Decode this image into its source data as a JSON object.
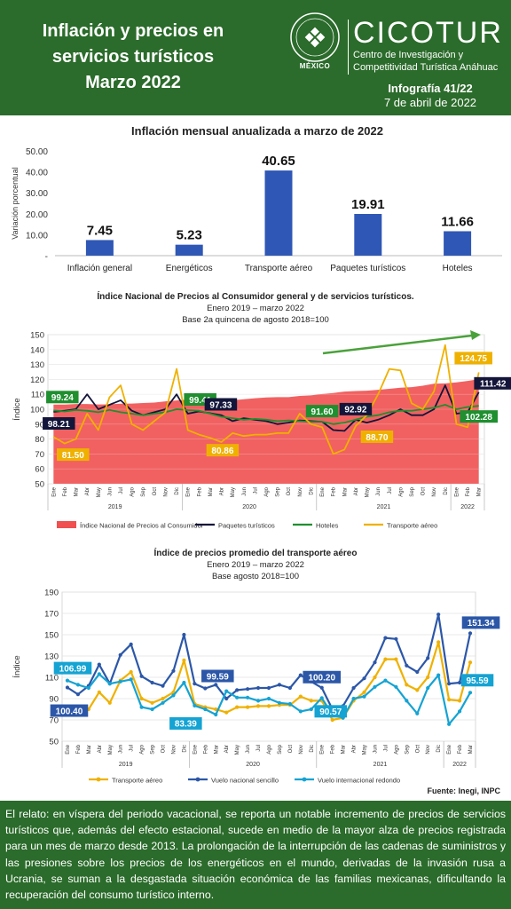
{
  "header": {
    "title_lines": [
      "Inflación y precios en",
      "servicios turísticos",
      "Marzo 2022"
    ],
    "logo_name": "CICOTUR",
    "org_line1": "Centro de Investigación y",
    "org_line2": "Competitividad Turística Anáhuac",
    "seal_text": "MÉXICO",
    "infographic": "Infografía 41/22",
    "date": "7 de abril de 2022",
    "accent_color": "#2b6b2b"
  },
  "chart_data": [
    {
      "type": "bar",
      "title": "Inflación mensual anualizada a marzo de 2022",
      "ylabel": "Variación porcentual",
      "categories": [
        "Inflación general",
        "Energéticos",
        "Transporte aéreo",
        "Paquetes turísticos",
        "Hoteles"
      ],
      "values": [
        7.45,
        5.23,
        40.65,
        19.91,
        11.66
      ],
      "value_labels": [
        "7.45",
        "5.23",
        "40.65",
        "19.91",
        "11.66"
      ],
      "yticks": [
        "-",
        "10.00",
        "20.00",
        "30.00",
        "40.00",
        "50.00"
      ],
      "ylim": [
        0,
        50
      ],
      "color": "#2f57b5"
    },
    {
      "type": "line",
      "title": "Índice Nacional de Precios al Consumidor general y de servicios turísticos.",
      "subtitle1": "Enero 2019 – marzo 2022",
      "subtitle2": "Base 2a quincena de agosto 2018=100",
      "ylabel": "Índice",
      "ylim": [
        50,
        150
      ],
      "yticks": [
        50,
        60,
        70,
        80,
        90,
        100,
        110,
        120,
        130,
        140,
        150
      ],
      "month_labels": [
        "Ene",
        "Feb",
        "Mar",
        "Abr",
        "May",
        "Jun",
        "Jul",
        "Ago",
        "Sep",
        "Oct",
        "Nov",
        "Dic"
      ],
      "years": [
        "2019",
        "2020",
        "2021",
        "2022"
      ],
      "series": [
        {
          "name": "Índice Nacional de Precios al Consumidor",
          "kind": "area",
          "color": "#f05050",
          "values": [
            103.1,
            103.1,
            103.5,
            103.5,
            103.2,
            103.3,
            103.7,
            103.8,
            104.2,
            104.5,
            105.3,
            105.9,
            106.4,
            106.9,
            106.8,
            105.8,
            106.0,
            106.7,
            107.4,
            107.9,
            108.1,
            108.1,
            108.9,
            109.3,
            110.2,
            110.9,
            111.8,
            112.2,
            112.4,
            113.0,
            113.7,
            114.4,
            114.8,
            115.8,
            117.1,
            117.3,
            118.0,
            118.98,
            120.2
          ]
        },
        {
          "name": "Paquetes turísticos",
          "kind": "line",
          "color": "#13153a",
          "values": [
            98.21,
            99.0,
            100.0,
            110.0,
            100.0,
            103.0,
            106.0,
            99.0,
            96.0,
            98.0,
            100.0,
            110.0,
            97.0,
            98.5,
            97.33,
            96.0,
            92.0,
            94.0,
            93.0,
            92.0,
            90.0,
            91.0,
            92.5,
            92.0,
            91.6,
            86.0,
            85.5,
            92.92,
            91.0,
            93.0,
            96.0,
            100.0,
            96.0,
            96.0,
            100.0,
            116.0,
            97.0,
            98.0,
            111.42
          ]
        },
        {
          "name": "Hoteles",
          "kind": "line",
          "color": "#1f8f2f",
          "values": [
            99.24,
            98.5,
            99.5,
            99.0,
            98.0,
            99.5,
            98.0,
            97.0,
            96.0,
            97.0,
            98.0,
            100.0,
            99.41,
            99.0,
            97.0,
            95.0,
            94.0,
            93.0,
            93.5,
            93.0,
            92.0,
            92.5,
            92.0,
            91.6,
            91.6,
            90.0,
            91.0,
            93.0,
            95.0,
            96.0,
            98.0,
            99.0,
            99.0,
            100.0,
            101.0,
            103.0,
            100.0,
            101.5,
            102.28
          ]
        },
        {
          "name": "Transporte aéreo",
          "kind": "line",
          "color": "#efb100",
          "values": [
            81.5,
            77.0,
            80.0,
            97.0,
            86.0,
            108.0,
            116.0,
            90.0,
            86.0,
            92.0,
            98.0,
            127.0,
            86.0,
            83.0,
            80.86,
            78.0,
            84.0,
            82.0,
            83.0,
            83.0,
            84.0,
            84.0,
            97.0,
            90.0,
            88.0,
            70.0,
            73.0,
            88.7,
            96.0,
            110.0,
            127.0,
            126.0,
            104.0,
            100.0,
            112.0,
            143.0,
            90.0,
            88.0,
            124.75
          ]
        }
      ],
      "data_labels": [
        {
          "text": "99.24",
          "series": 2,
          "index": 0
        },
        {
          "text": "98.21",
          "series": 1,
          "index": 0
        },
        {
          "text": "81.50",
          "series": 3,
          "index": 0
        },
        {
          "text": "99.41",
          "series": 2,
          "index": 12
        },
        {
          "text": "97.33",
          "series": 1,
          "index": 14
        },
        {
          "text": "80.86",
          "series": 3,
          "index": 14
        },
        {
          "text": "91.60",
          "series": 2,
          "index": 24
        },
        {
          "text": "92.92",
          "series": 1,
          "index": 27
        },
        {
          "text": "88.70",
          "series": 3,
          "index": 27
        },
        {
          "text": "124.75",
          "series": 3,
          "index": 38
        },
        {
          "text": "111.42",
          "series": 1,
          "index": 38
        },
        {
          "text": "102.28",
          "series": 2,
          "index": 38
        }
      ],
      "trend_arrow": true,
      "legend": "bottom"
    },
    {
      "type": "line",
      "title": "Índice de precios promedio del transporte aéreo",
      "subtitle1": "Enero 2019 – marzo 2022",
      "subtitle2": "Base agosto 2018=100",
      "ylabel": "Índice",
      "ylim": [
        50,
        190
      ],
      "yticks": [
        50,
        70,
        90,
        110,
        130,
        150,
        170,
        190
      ],
      "month_labels": [
        "Ene",
        "Feb",
        "Mar",
        "Abr",
        "May",
        "Jun",
        "Jul",
        "Ago",
        "Sep",
        "Oct",
        "Nov",
        "Dic"
      ],
      "years": [
        "2019",
        "2020",
        "2021",
        "2022"
      ],
      "series": [
        {
          "name": "Transporte aéreo",
          "color": "#efb100",
          "values": [
            78.0,
            76.0,
            80.0,
            96.0,
            86.0,
            107.0,
            115.0,
            90.0,
            86.0,
            90.0,
            96.0,
            126.0,
            85.0,
            82.0,
            80.0,
            77.0,
            82.0,
            82.0,
            83.0,
            83.0,
            84.0,
            84.0,
            92.0,
            88.0,
            88.0,
            70.0,
            72.0,
            88.0,
            96.0,
            110.0,
            127.0,
            127.0,
            103.0,
            98.0,
            110.0,
            143.0,
            89.0,
            88.0,
            124.0
          ]
        },
        {
          "name": "Vuelo nacional sencillo",
          "color": "#2c57a8",
          "values": [
            100.4,
            94.0,
            102.0,
            122.0,
            104.0,
            131.0,
            141.0,
            111.0,
            105.0,
            102.0,
            116.0,
            150.0,
            104.0,
            99.59,
            103.0,
            90.0,
            98.0,
            99.0,
            100.0,
            100.0,
            103.0,
            100.0,
            112.0,
            106.0,
            100.2,
            80.0,
            83.0,
            100.0,
            109.0,
            124.0,
            147.0,
            146.0,
            121.0,
            115.0,
            128.0,
            169.0,
            104.0,
            105.0,
            151.34
          ]
        },
        {
          "name": "Vuelo internacional redondo",
          "color": "#15a3d3",
          "values": [
            106.99,
            103.0,
            100.0,
            113.0,
            104.0,
            106.0,
            108.0,
            82.0,
            80.0,
            86.0,
            93.0,
            105.0,
            83.39,
            80.0,
            75.0,
            97.0,
            91.0,
            91.0,
            88.0,
            90.0,
            86.0,
            85.0,
            78.0,
            80.0,
            90.57,
            75.0,
            72.0,
            90.0,
            92.0,
            101.0,
            107.0,
            101.0,
            88.0,
            76.0,
            100.0,
            112.0,
            66.0,
            78.0,
            95.59
          ]
        }
      ],
      "data_labels": [
        {
          "text": "106.99",
          "series": 2,
          "index": 0
        },
        {
          "text": "100.40",
          "series": 1,
          "index": 0
        },
        {
          "text": "99.59",
          "series": 1,
          "index": 13
        },
        {
          "text": "83.39",
          "series": 2,
          "index": 12
        },
        {
          "text": "100.20",
          "series": 1,
          "index": 24
        },
        {
          "text": "90.57",
          "series": 2,
          "index": 24
        },
        {
          "text": "151.34",
          "series": 1,
          "index": 38
        },
        {
          "text": "95.59",
          "series": 2,
          "index": 38
        }
      ],
      "legend": "bottom"
    }
  ],
  "source": "Fuente: Inegi, INPC",
  "footer_text": "El relato: en víspera del periodo vacacional, se reporta un notable incremento de precios de servicios turísticos que, además del efecto estacional, sucede en medio de la mayor alza de precios registrada para un mes de marzo desde 2013. La prolongación de la interrupción de las cadenas de suministros y las presiones sobre los precios de los energéticos en el mundo, derivadas de la invasión rusa a Ucrania, se suman a la desgastada situación económica de las familias mexicanas, dificultando la recuperación del consumo turístico interno."
}
